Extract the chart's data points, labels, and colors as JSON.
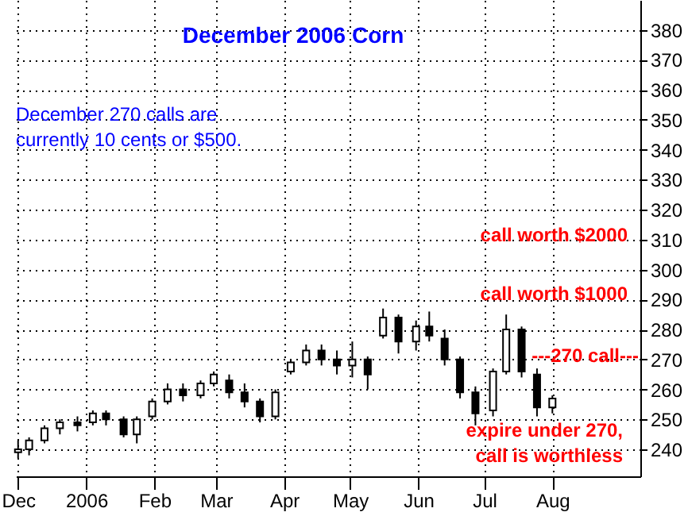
{
  "chart_data": {
    "type": "candlestick",
    "title": "December 2006 Corn",
    "annotations": [
      "December 270 calls are\ncurrently 10 cents or $500.",
      "call worth $2000",
      "call worth $1000",
      "---270 call---",
      "expire under 270,\ncall is worthless"
    ],
    "x": [
      "2005-12-01",
      "2005-12-06",
      "2005-12-13",
      "2005-12-20",
      "2005-12-28",
      "2006-01-04",
      "2006-01-10",
      "2006-01-18",
      "2006-01-24",
      "2006-01-31",
      "2006-02-07",
      "2006-02-14",
      "2006-02-22",
      "2006-02-28",
      "2006-03-07",
      "2006-03-14",
      "2006-03-21",
      "2006-03-28",
      "2006-04-04",
      "2006-04-11",
      "2006-04-18",
      "2006-04-25",
      "2006-05-02",
      "2006-05-09",
      "2006-05-16",
      "2006-05-23",
      "2006-05-31",
      "2006-06-06",
      "2006-06-13",
      "2006-06-20",
      "2006-06-27",
      "2006-07-05",
      "2006-07-11",
      "2006-07-18",
      "2006-07-25",
      "2006-08-01"
    ],
    "ohlc": [
      [
        239,
        243,
        237,
        240
      ],
      [
        240,
        244,
        238,
        243
      ],
      [
        243,
        248,
        242,
        247
      ],
      [
        247,
        250,
        245,
        249
      ],
      [
        249,
        251,
        246,
        248
      ],
      [
        249,
        253,
        248,
        252
      ],
      [
        252,
        253,
        248,
        250
      ],
      [
        250,
        251,
        244,
        245
      ],
      [
        245,
        251,
        242,
        250
      ],
      [
        251,
        257,
        250,
        256
      ],
      [
        256,
        262,
        255,
        260
      ],
      [
        260,
        262,
        256,
        258
      ],
      [
        258,
        263,
        257,
        262
      ],
      [
        262,
        266,
        261,
        265
      ],
      [
        263,
        265,
        257,
        259
      ],
      [
        259,
        262,
        254,
        256
      ],
      [
        256,
        257,
        249,
        251
      ],
      [
        251,
        260,
        250,
        259
      ],
      [
        266,
        270,
        265,
        269
      ],
      [
        269,
        275,
        268,
        273
      ],
      [
        273,
        275,
        268,
        270
      ],
      [
        270,
        273,
        265,
        268
      ],
      [
        268,
        276,
        264,
        270
      ],
      [
        270,
        271,
        260,
        265
      ],
      [
        278,
        287,
        277,
        284
      ],
      [
        284,
        285,
        272,
        276
      ],
      [
        276,
        283,
        273,
        281
      ],
      [
        281,
        286,
        276,
        278
      ],
      [
        277,
        280,
        268,
        270
      ],
      [
        270,
        271,
        257,
        259
      ],
      [
        259,
        261,
        248,
        252
      ],
      [
        253,
        267,
        251,
        266
      ],
      [
        266,
        285,
        265,
        280
      ],
      [
        280,
        281,
        264,
        266
      ],
      [
        265,
        267,
        251,
        254
      ],
      [
        254,
        258,
        252,
        257
      ]
    ],
    "color": "#000000",
    "xlim": [
      "2005-11-30",
      "2006-09-10"
    ],
    "xticks": [
      {
        "value": "2005-12-01",
        "label": "Dec"
      },
      {
        "value": "2006-01-01",
        "label": "2006"
      },
      {
        "value": "2006-02-01",
        "label": "Feb"
      },
      {
        "value": "2006-03-01",
        "label": "Mar"
      },
      {
        "value": "2006-04-01",
        "label": "Apr"
      },
      {
        "value": "2006-05-01",
        "label": "May"
      },
      {
        "value": "2006-06-01",
        "label": "Jun"
      },
      {
        "value": "2006-07-01",
        "label": "Jul"
      },
      {
        "value": "2006-08-01",
        "label": "Aug"
      }
    ],
    "ylim": [
      231,
      390
    ],
    "yticks": [
      240,
      250,
      260,
      270,
      280,
      290,
      300,
      310,
      320,
      330,
      340,
      350,
      360,
      370,
      380
    ],
    "grid": true
  }
}
